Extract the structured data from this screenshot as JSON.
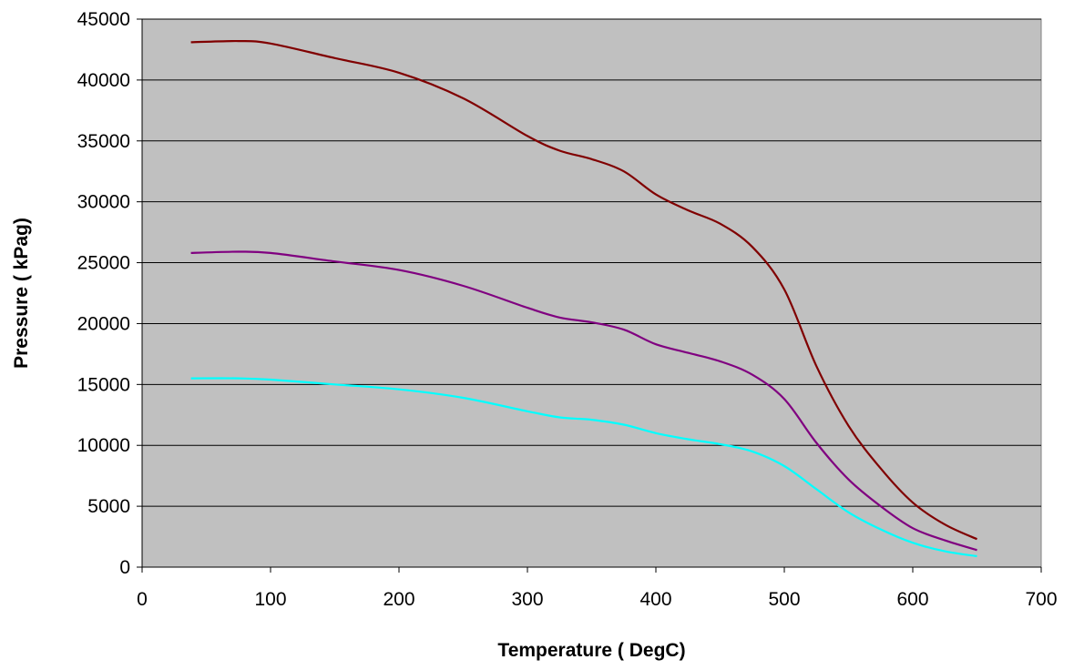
{
  "chart_data": {
    "type": "line",
    "title": "",
    "xlabel": "Temperature ( DegC)",
    "ylabel": "Pressure ( kPag)",
    "xlim": [
      0,
      700
    ],
    "ylim": [
      0,
      45000
    ],
    "x_ticks": [
      0,
      100,
      200,
      300,
      400,
      500,
      600,
      700
    ],
    "y_ticks": [
      0,
      5000,
      10000,
      15000,
      20000,
      25000,
      30000,
      35000,
      40000,
      45000
    ],
    "grid": true,
    "plot_background": "#C0C0C0",
    "series": [
      {
        "color": "#800000",
        "points": [
          [
            38,
            43100
          ],
          [
            75,
            43200
          ],
          [
            100,
            43000
          ],
          [
            150,
            41800
          ],
          [
            200,
            40600
          ],
          [
            250,
            38500
          ],
          [
            300,
            35400
          ],
          [
            325,
            34200
          ],
          [
            350,
            33500
          ],
          [
            375,
            32500
          ],
          [
            400,
            30600
          ],
          [
            425,
            29300
          ],
          [
            450,
            28200
          ],
          [
            475,
            26300
          ],
          [
            500,
            22800
          ],
          [
            525,
            16500
          ],
          [
            550,
            11600
          ],
          [
            575,
            8100
          ],
          [
            600,
            5300
          ],
          [
            625,
            3500
          ],
          [
            650,
            2300
          ]
        ]
      },
      {
        "color": "#800080",
        "points": [
          [
            38,
            25800
          ],
          [
            75,
            25900
          ],
          [
            100,
            25800
          ],
          [
            150,
            25100
          ],
          [
            200,
            24400
          ],
          [
            250,
            23100
          ],
          [
            300,
            21300
          ],
          [
            325,
            20500
          ],
          [
            350,
            20100
          ],
          [
            375,
            19500
          ],
          [
            400,
            18300
          ],
          [
            425,
            17600
          ],
          [
            450,
            16900
          ],
          [
            475,
            15800
          ],
          [
            500,
            13800
          ],
          [
            525,
            10200
          ],
          [
            550,
            7200
          ],
          [
            575,
            5000
          ],
          [
            600,
            3200
          ],
          [
            625,
            2200
          ],
          [
            650,
            1400
          ]
        ]
      },
      {
        "color": "#00FFFF",
        "points": [
          [
            38,
            15500
          ],
          [
            75,
            15500
          ],
          [
            100,
            15400
          ],
          [
            150,
            15000
          ],
          [
            200,
            14600
          ],
          [
            250,
            13900
          ],
          [
            300,
            12800
          ],
          [
            325,
            12300
          ],
          [
            350,
            12100
          ],
          [
            375,
            11700
          ],
          [
            400,
            11000
          ],
          [
            425,
            10500
          ],
          [
            450,
            10100
          ],
          [
            475,
            9500
          ],
          [
            500,
            8300
          ],
          [
            525,
            6400
          ],
          [
            550,
            4500
          ],
          [
            575,
            3100
          ],
          [
            600,
            2000
          ],
          [
            625,
            1300
          ],
          [
            650,
            900
          ]
        ]
      }
    ]
  }
}
